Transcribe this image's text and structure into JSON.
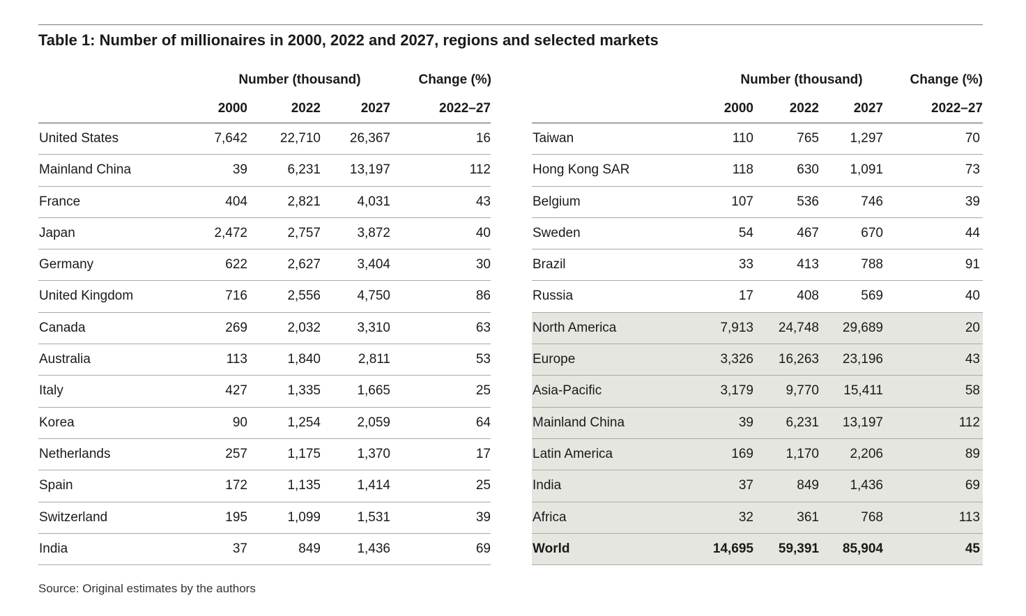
{
  "title": "Table 1: Number of millionaires in 2000, 2022 and 2027, regions and selected markets",
  "headers": {
    "number_group": "Number (thousand)",
    "change_group": "Change (%)",
    "years": [
      "2000",
      "2022",
      "2027"
    ],
    "change_period": "2022–27"
  },
  "left_rows": [
    {
      "name": "United States",
      "y2000": "7,642",
      "y2022": "22,710",
      "y2027": "26,367",
      "change": "16"
    },
    {
      "name": "Mainland China",
      "y2000": "39",
      "y2022": "6,231",
      "y2027": "13,197",
      "change": "112"
    },
    {
      "name": "France",
      "y2000": "404",
      "y2022": "2,821",
      "y2027": "4,031",
      "change": "43"
    },
    {
      "name": "Japan",
      "y2000": "2,472",
      "y2022": "2,757",
      "y2027": "3,872",
      "change": "40"
    },
    {
      "name": "Germany",
      "y2000": "622",
      "y2022": "2,627",
      "y2027": "3,404",
      "change": "30"
    },
    {
      "name": "United Kingdom",
      "y2000": "716",
      "y2022": "2,556",
      "y2027": "4,750",
      "change": "86"
    },
    {
      "name": "Canada",
      "y2000": "269",
      "y2022": "2,032",
      "y2027": "3,310",
      "change": "63"
    },
    {
      "name": "Australia",
      "y2000": "113",
      "y2022": "1,840",
      "y2027": "2,811",
      "change": "53"
    },
    {
      "name": "Italy",
      "y2000": "427",
      "y2022": "1,335",
      "y2027": "1,665",
      "change": "25"
    },
    {
      "name": "Korea",
      "y2000": "90",
      "y2022": "1,254",
      "y2027": "2,059",
      "change": "64"
    },
    {
      "name": "Netherlands",
      "y2000": "257",
      "y2022": "1,175",
      "y2027": "1,370",
      "change": "17"
    },
    {
      "name": "Spain",
      "y2000": "172",
      "y2022": "1,135",
      "y2027": "1,414",
      "change": "25"
    },
    {
      "name": "Switzerland",
      "y2000": "195",
      "y2022": "1,099",
      "y2027": "1,531",
      "change": "39"
    },
    {
      "name": "India",
      "y2000": "37",
      "y2022": "849",
      "y2027": "1,436",
      "change": "69"
    }
  ],
  "right_rows": [
    {
      "name": "Taiwan",
      "y2000": "110",
      "y2022": "765",
      "y2027": "1,297",
      "change": "70",
      "shaded": false,
      "bold": false
    },
    {
      "name": "Hong Kong SAR",
      "y2000": "118",
      "y2022": "630",
      "y2027": "1,091",
      "change": "73",
      "shaded": false,
      "bold": false
    },
    {
      "name": "Belgium",
      "y2000": "107",
      "y2022": "536",
      "y2027": "746",
      "change": "39",
      "shaded": false,
      "bold": false
    },
    {
      "name": "Sweden",
      "y2000": "54",
      "y2022": "467",
      "y2027": "670",
      "change": "44",
      "shaded": false,
      "bold": false
    },
    {
      "name": "Brazil",
      "y2000": "33",
      "y2022": "413",
      "y2027": "788",
      "change": "91",
      "shaded": false,
      "bold": false
    },
    {
      "name": "Russia",
      "y2000": "17",
      "y2022": "408",
      "y2027": "569",
      "change": "40",
      "shaded": false,
      "bold": false
    },
    {
      "name": "North America",
      "y2000": "7,913",
      "y2022": "24,748",
      "y2027": "29,689",
      "change": "20",
      "shaded": true,
      "bold": false
    },
    {
      "name": "Europe",
      "y2000": "3,326",
      "y2022": "16,263",
      "y2027": "23,196",
      "change": "43",
      "shaded": true,
      "bold": false
    },
    {
      "name": "Asia-Pacific",
      "y2000": "3,179",
      "y2022": "9,770",
      "y2027": "15,411",
      "change": "58",
      "shaded": true,
      "bold": false
    },
    {
      "name": "Mainland China",
      "y2000": "39",
      "y2022": "6,231",
      "y2027": "13,197",
      "change": "112",
      "shaded": true,
      "bold": false
    },
    {
      "name": "Latin America",
      "y2000": "169",
      "y2022": "1,170",
      "y2027": "2,206",
      "change": "89",
      "shaded": true,
      "bold": false
    },
    {
      "name": "India",
      "y2000": "37",
      "y2022": "849",
      "y2027": "1,436",
      "change": "69",
      "shaded": true,
      "bold": false
    },
    {
      "name": "Africa",
      "y2000": "32",
      "y2022": "361",
      "y2027": "768",
      "change": "113",
      "shaded": true,
      "bold": false
    },
    {
      "name": "World",
      "y2000": "14,695",
      "y2022": "59,391",
      "y2027": "85,904",
      "change": "45",
      "shaded": true,
      "bold": true
    }
  ],
  "source": "Source: Original estimates by the authors",
  "colors": {
    "shading": "#e6e6e1",
    "rule": "#a8a8a8",
    "text": "#1a1a1a"
  }
}
